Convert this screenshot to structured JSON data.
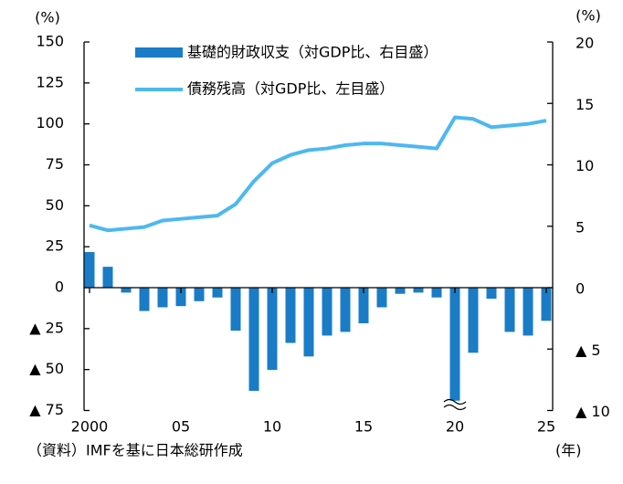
{
  "chart_data": {
    "type": "bar_line",
    "y_unit": "(%)",
    "y2_unit": "(%)",
    "x_unit": "(年)",
    "source": "（資料）IMFを基に日本総研作成",
    "x": [
      2000,
      2001,
      2002,
      2003,
      2004,
      2005,
      2006,
      2007,
      2008,
      2009,
      2010,
      2011,
      2012,
      2013,
      2014,
      2015,
      2016,
      2017,
      2018,
      2019,
      2020,
      2021,
      2022,
      2023,
      2024,
      2025
    ],
    "series": [
      {
        "name": "基礎的財政収支（対GDP比、右目盛）",
        "type": "bar",
        "axis": "y2",
        "color": "#1a7cc6",
        "values": [
          2.9,
          1.7,
          -0.4,
          -1.9,
          -1.6,
          -1.5,
          -1.1,
          -0.8,
          -3.5,
          -8.4,
          -6.7,
          -4.5,
          -5.6,
          -3.9,
          -3.6,
          -2.9,
          -1.6,
          -0.5,
          -0.4,
          -0.8,
          -9.2,
          -5.3,
          -0.9,
          -3.6,
          -3.9,
          -2.7
        ]
      },
      {
        "name": "債務残高（対GDP比、左目盛）",
        "type": "line",
        "axis": "y",
        "color": "#4db8f0",
        "values": [
          38,
          35,
          36,
          37,
          41,
          42,
          43,
          44,
          51,
          65,
          76,
          81,
          84,
          85,
          87,
          88,
          88,
          87,
          86,
          85,
          104,
          103,
          98,
          99,
          100,
          102
        ]
      }
    ],
    "xlim": [
      1999.7,
      2025.35
    ],
    "xticks": [
      2000,
      {
        "value": 2005,
        "label": "05"
      },
      {
        "value": 2010,
        "label": "10"
      },
      {
        "value": 2015,
        "label": "15"
      },
      {
        "value": 2020,
        "label": "20"
      },
      {
        "value": 2025,
        "label": "25"
      }
    ],
    "ylim": [
      -75,
      150
    ],
    "yticks": [
      150,
      125,
      100,
      75,
      50,
      25,
      0,
      {
        "value": -25,
        "label": "▲ 25"
      },
      {
        "value": -50,
        "label": "▲ 50"
      },
      {
        "value": -75,
        "label": "▲ 75"
      }
    ],
    "y2lim": [
      -10,
      20
    ],
    "y2ticks": [
      20,
      15,
      10,
      5,
      0,
      {
        "value": -5,
        "label": "▲ 5"
      },
      {
        "value": -10,
        "label": "▲ 10"
      }
    ]
  }
}
